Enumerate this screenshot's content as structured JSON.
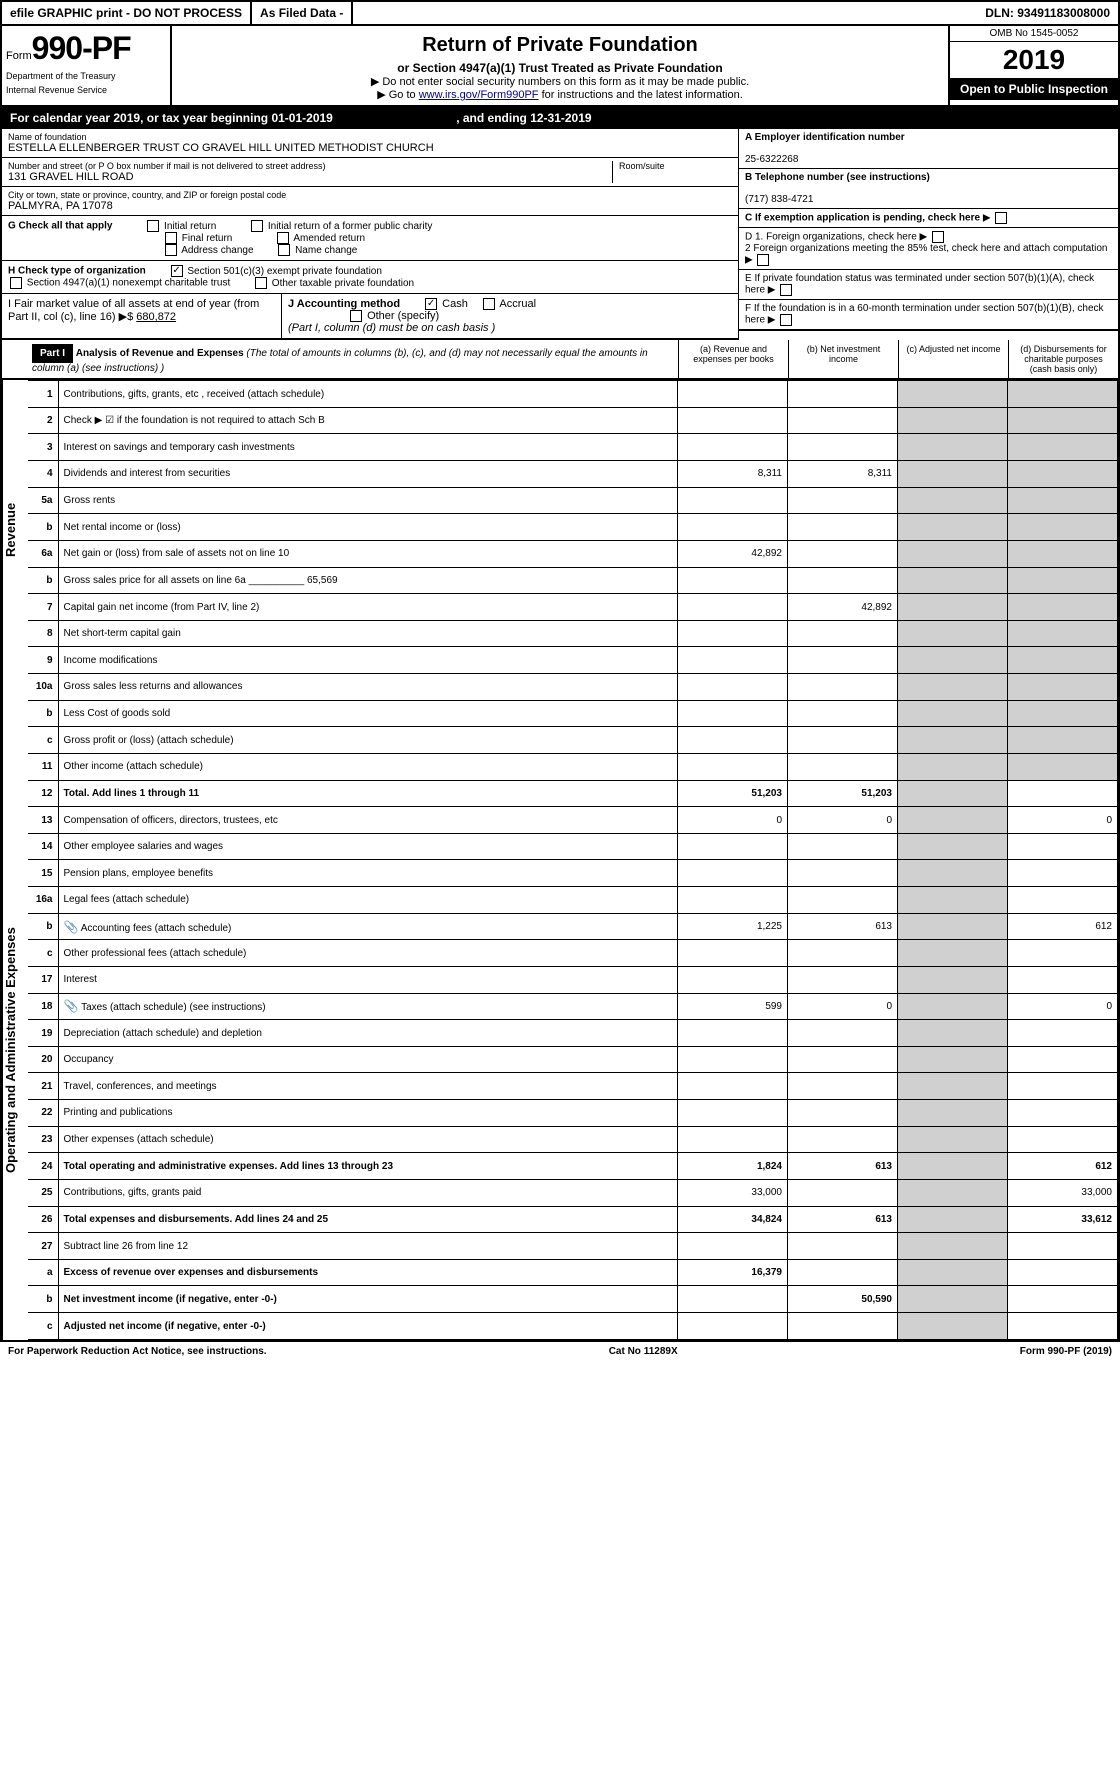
{
  "topbar": {
    "efile": "efile GRAPHIC print - DO NOT PROCESS",
    "asfiled": "As Filed Data -",
    "dln": "DLN: 93491183008000"
  },
  "form": {
    "prefix": "Form",
    "number": "990-PF",
    "dept1": "Department of the Treasury",
    "dept2": "Internal Revenue Service"
  },
  "title": {
    "main": "Return of Private Foundation",
    "sub": "or Section 4947(a)(1) Trust Treated as Private Foundation",
    "instr1": "▶ Do not enter social security numbers on this form as it may be made public.",
    "instr2_pre": "▶ Go to ",
    "instr2_link": "www.irs.gov/Form990PF",
    "instr2_post": " for instructions and the latest information."
  },
  "yearbox": {
    "omb": "OMB No 1545-0052",
    "year": "2019",
    "open": "Open to Public Inspection"
  },
  "calyear": {
    "text_pre": "For calendar year 2019, or tax year beginning ",
    "begin": "01-01-2019",
    "text_mid": " , and ending ",
    "end": "12-31-2019"
  },
  "org": {
    "name_label": "Name of foundation",
    "name": "ESTELLA ELLENBERGER TRUST CO GRAVEL HILL UNITED METHODIST CHURCH",
    "addr_label": "Number and street (or P O  box number if mail is not delivered to street address)",
    "addr": "131 GRAVEL HILL ROAD",
    "room_label": "Room/suite",
    "city_label": "City or town, state or province, country, and ZIP or foreign postal code",
    "city": "PALMYRA, PA  17078"
  },
  "right": {
    "A_label": "A Employer identification number",
    "A_val": "25-6322268",
    "B_label": "B Telephone number (see instructions)",
    "B_val": "(717) 838-4721",
    "C_label": "C If exemption application is pending, check here",
    "D1": "D 1. Foreign organizations, check here",
    "D2": "2  Foreign organizations meeting the 85% test, check here and attach computation",
    "E": "E  If private foundation status was terminated under section 507(b)(1)(A), check here",
    "F": "F  If the foundation is in a 60-month termination under section 507(b)(1)(B), check here"
  },
  "G": {
    "label": "G Check all that apply",
    "opts": [
      "Initial return",
      "Initial return of a former public charity",
      "Final return",
      "Amended return",
      "Address change",
      "Name change"
    ]
  },
  "H": {
    "label": "H Check type of organization",
    "opt1": "Section 501(c)(3) exempt private foundation",
    "opt2": "Section 4947(a)(1) nonexempt charitable trust",
    "opt3": "Other taxable private foundation"
  },
  "I": {
    "label": "I Fair market value of all assets at end of year (from Part II, col  (c), line 16) ▶$ ",
    "val": "680,872"
  },
  "J": {
    "label": "J Accounting method",
    "cash": "Cash",
    "accrual": "Accrual",
    "other": "Other (specify)",
    "note": "(Part I, column (d) must be on cash basis )"
  },
  "part1": {
    "label": "Part I",
    "heading": "Analysis of Revenue and Expenses",
    "note": " (The total of amounts in columns (b), (c), and (d) may not necessarily equal the amounts in column (a) (see instructions) )",
    "cols": {
      "a": "(a) Revenue and expenses per books",
      "b": "(b) Net investment income",
      "c": "(c) Adjusted net income",
      "d": "(d) Disbursements for charitable purposes (cash basis only)"
    }
  },
  "vert": {
    "rev": "Revenue",
    "exp": "Operating and Administrative Expenses"
  },
  "rows": [
    {
      "n": "1",
      "d": "Contributions, gifts, grants, etc , received (attach schedule)"
    },
    {
      "n": "2",
      "d": "Check ▶ ☑ if the foundation is not required to attach Sch B"
    },
    {
      "n": "3",
      "d": "Interest on savings and temporary cash investments"
    },
    {
      "n": "4",
      "d": "Dividends and interest from securities",
      "a": "8,311",
      "b": "8,311"
    },
    {
      "n": "5a",
      "d": "Gross rents"
    },
    {
      "n": "b",
      "d": "Net rental income or (loss)"
    },
    {
      "n": "6a",
      "d": "Net gain or (loss) from sale of assets not on line 10",
      "a": "42,892"
    },
    {
      "n": "b",
      "d": "Gross sales price for all assets on line 6a __________ 65,569"
    },
    {
      "n": "7",
      "d": "Capital gain net income (from Part IV, line 2)",
      "b": "42,892"
    },
    {
      "n": "8",
      "d": "Net short-term capital gain"
    },
    {
      "n": "9",
      "d": "Income modifications"
    },
    {
      "n": "10a",
      "d": "Gross sales less returns and allowances"
    },
    {
      "n": "b",
      "d": "Less  Cost of goods sold"
    },
    {
      "n": "c",
      "d": "Gross profit or (loss) (attach schedule)"
    },
    {
      "n": "11",
      "d": "Other income (attach schedule)"
    },
    {
      "n": "12",
      "d": "Total. Add lines 1 through 11",
      "bold": true,
      "a": "51,203",
      "b": "51,203"
    },
    {
      "n": "13",
      "d": "Compensation of officers, directors, trustees, etc",
      "a": "0",
      "b": "0",
      "dd": "0"
    },
    {
      "n": "14",
      "d": "Other employee salaries and wages"
    },
    {
      "n": "15",
      "d": "Pension plans, employee benefits"
    },
    {
      "n": "16a",
      "d": "Legal fees (attach schedule)"
    },
    {
      "n": "b",
      "d": "Accounting fees (attach schedule)",
      "icon": true,
      "a": "1,225",
      "b": "613",
      "dd": "612"
    },
    {
      "n": "c",
      "d": "Other professional fees (attach schedule)"
    },
    {
      "n": "17",
      "d": "Interest"
    },
    {
      "n": "18",
      "d": "Taxes (attach schedule) (see instructions)",
      "icon": true,
      "a": "599",
      "b": "0",
      "dd": "0"
    },
    {
      "n": "19",
      "d": "Depreciation (attach schedule) and depletion"
    },
    {
      "n": "20",
      "d": "Occupancy"
    },
    {
      "n": "21",
      "d": "Travel, conferences, and meetings"
    },
    {
      "n": "22",
      "d": "Printing and publications"
    },
    {
      "n": "23",
      "d": "Other expenses (attach schedule)"
    },
    {
      "n": "24",
      "d": "Total operating and administrative expenses. Add lines 13 through 23",
      "bold": true,
      "a": "1,824",
      "b": "613",
      "dd": "612"
    },
    {
      "n": "25",
      "d": "Contributions, gifts, grants paid",
      "a": "33,000",
      "dd": "33,000"
    },
    {
      "n": "26",
      "d": "Total expenses and disbursements. Add lines 24 and 25",
      "bold": true,
      "a": "34,824",
      "b": "613",
      "dd": "33,612"
    },
    {
      "n": "27",
      "d": "Subtract line 26 from line 12"
    },
    {
      "n": "a",
      "d": "Excess of revenue over expenses and disbursements",
      "bold": true,
      "a": "16,379"
    },
    {
      "n": "b",
      "d": "Net investment income (if negative, enter -0-)",
      "bold": true,
      "b": "50,590"
    },
    {
      "n": "c",
      "d": "Adjusted net income (if negative, enter -0-)",
      "bold": true
    }
  ],
  "footer": {
    "left": "For Paperwork Reduction Act Notice, see instructions.",
    "mid": "Cat No 11289X",
    "right": "Form 990-PF (2019)"
  },
  "colors": {
    "black": "#000000",
    "gray": "#d0d0d0",
    "link": "#00008b"
  }
}
